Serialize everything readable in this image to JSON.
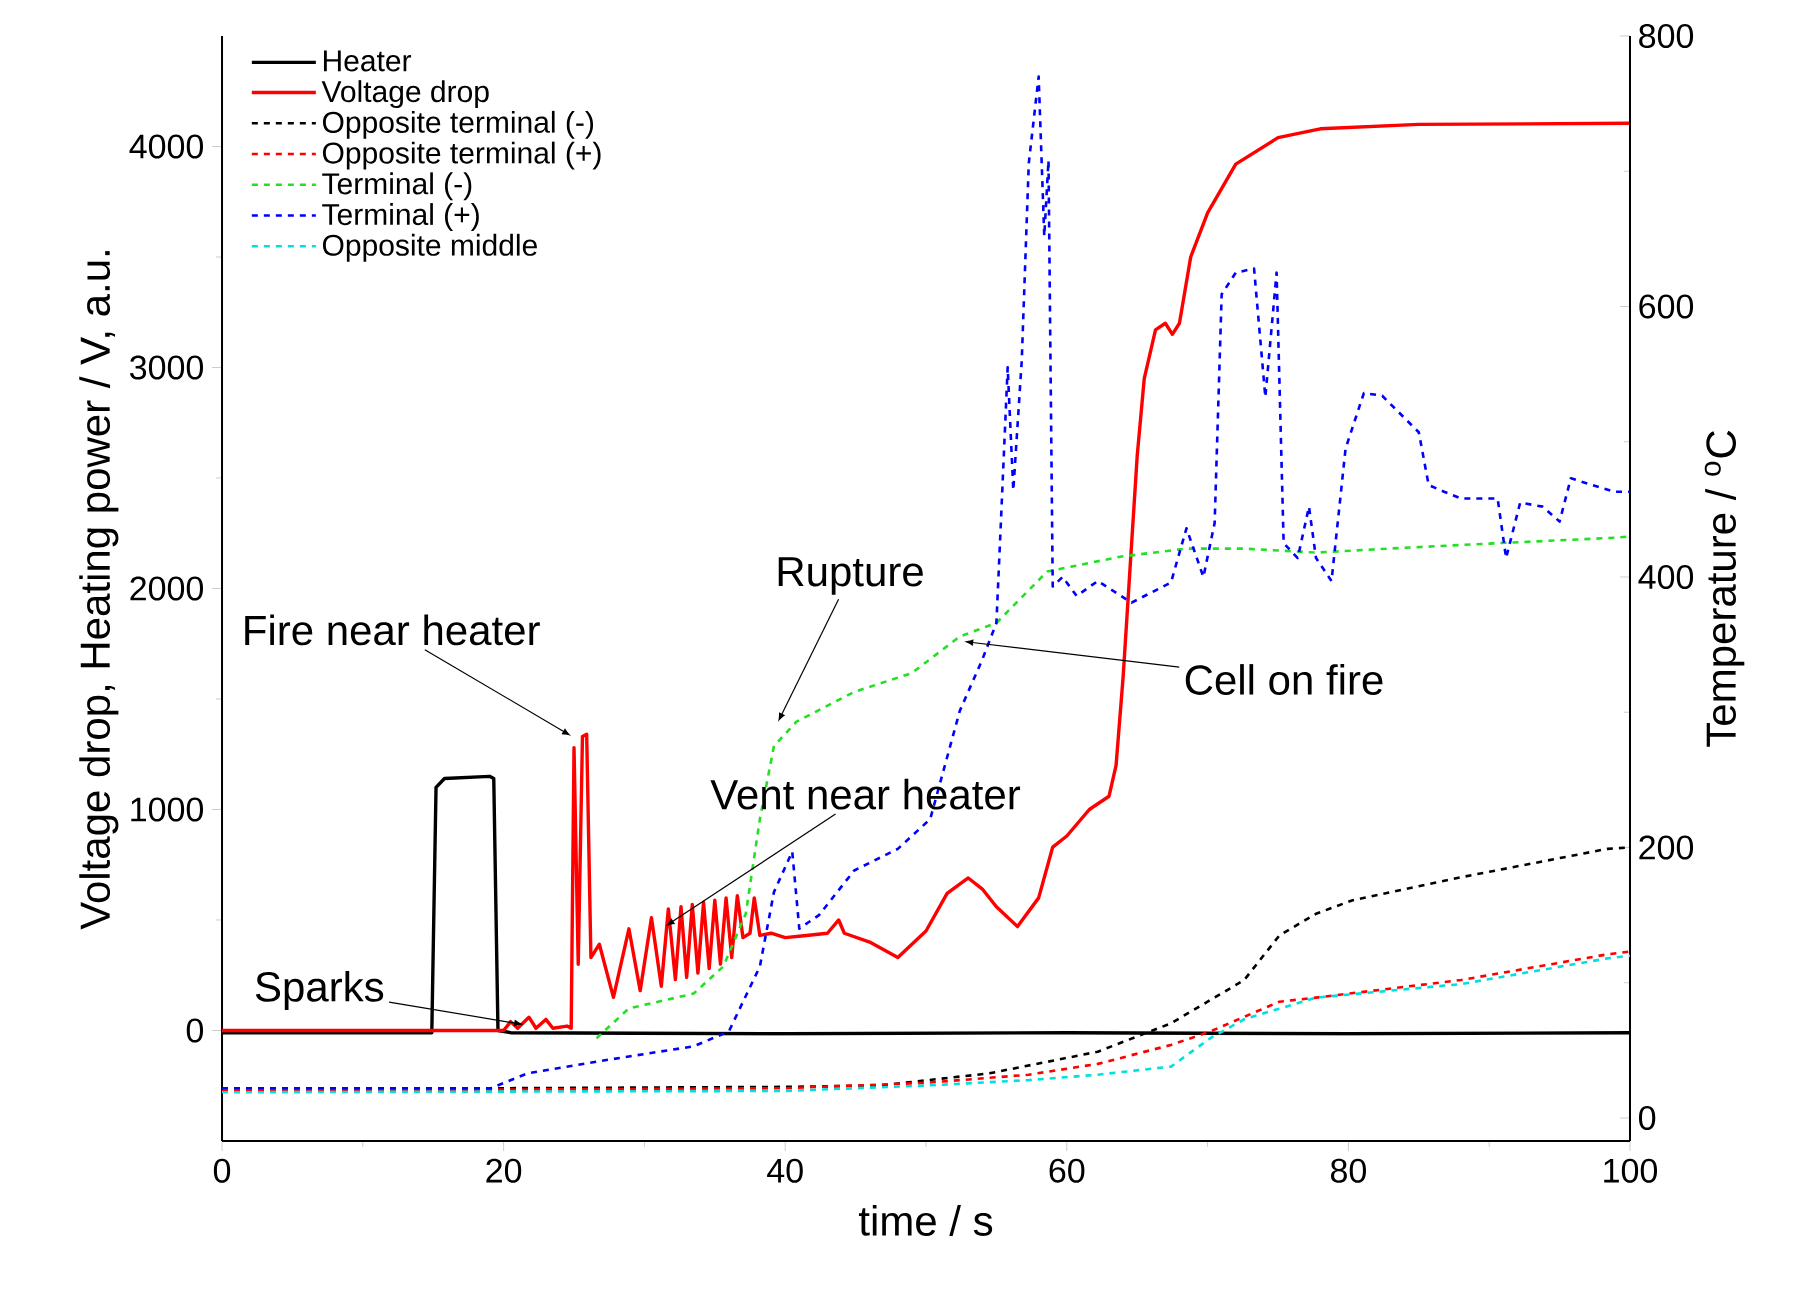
{
  "chart_data": {
    "type": "line",
    "xlabel": "time / s",
    "ylabel": "Voltage drop, Heating power / V, a.u.",
    "y2label": "Temperature / $^{o}$C",
    "xlim": [
      0,
      100
    ],
    "xticks": [
      0,
      20,
      40,
      60,
      80,
      100
    ],
    "ylim": [
      -500,
      4500
    ],
    "yticks": [
      0,
      1000,
      2000,
      3000,
      4000
    ],
    "y2lim": [
      -17,
      800
    ],
    "y2ticks": [
      0,
      200,
      400,
      600,
      800
    ],
    "legend": "top left",
    "series": [
      {
        "name": "Heater",
        "color": "#000000",
        "line_style": "solid",
        "x": [
          0,
          14.9,
          15.2,
          15.8,
          19.0,
          19.3,
          19.6,
          20.5,
          40,
          60,
          80,
          100
        ],
        "values": [
          -10,
          -10,
          1100,
          1140,
          1150,
          1140,
          0,
          -10,
          -15,
          -10,
          -15,
          -10
        ]
      },
      {
        "name": "Voltage drop",
        "color": "#ff0000",
        "line_style": "solid",
        "x": [
          0,
          20,
          20.5,
          21,
          21.8,
          22.3,
          23,
          23.5,
          24.5,
          24.8,
          25,
          25.3,
          25.6,
          25.9,
          26.2,
          26.8,
          27.8,
          28.9,
          29.7,
          30.5,
          31.2,
          31.7,
          32.2,
          32.6,
          33,
          33.4,
          33.8,
          34.2,
          34.6,
          35,
          35.4,
          35.8,
          36.2,
          36.6,
          37,
          37.5,
          37.8,
          38.2,
          39,
          40,
          41.5,
          43,
          43.8,
          44.2,
          46,
          48,
          50,
          51.5,
          53,
          54,
          55,
          56.5,
          58,
          59,
          60,
          61.6,
          63,
          63.5,
          64,
          64.5,
          65,
          65.5,
          66.3,
          67,
          67.5,
          68,
          68.8,
          70,
          72,
          75,
          78,
          85,
          100
        ],
        "values": [
          0,
          0,
          40,
          10,
          60,
          10,
          50,
          10,
          20,
          10,
          1280,
          300,
          1330,
          1340,
          330,
          390,
          150,
          460,
          180,
          510,
          200,
          550,
          230,
          560,
          240,
          570,
          260,
          580,
          280,
          590,
          300,
          600,
          330,
          610,
          420,
          440,
          600,
          430,
          440,
          420,
          430,
          440,
          500,
          440,
          400,
          330,
          450,
          620,
          690,
          640,
          560,
          470,
          600,
          830,
          880,
          1000,
          1060,
          1200,
          1600,
          2100,
          2600,
          2950,
          3170,
          3200,
          3150,
          3200,
          3500,
          3700,
          3920,
          4040,
          4080,
          4100,
          4105
        ]
      },
      {
        "name": "Opposite terminal (-)",
        "color": "#000000",
        "line_style": "dashed",
        "axis": "y2",
        "x": [
          0,
          20,
          40,
          46.7,
          54.5,
          62.2,
          67.4,
          72.6,
          75.1,
          77.7,
          80.3,
          88,
          98.4,
          100
        ],
        "values": [
          22,
          22,
          23,
          24,
          33,
          49,
          70,
          102,
          135,
          151,
          161,
          178,
          199,
          200
        ]
      },
      {
        "name": "Opposite terminal (+)",
        "color": "#ff0000",
        "line_style": "dashed",
        "axis": "y2",
        "x": [
          0,
          40,
          50,
          57.3,
          62.2,
          67.4,
          70.2,
          75.1,
          77.7,
          88,
          98.4,
          100
        ],
        "values": [
          20,
          22,
          26,
          32,
          40,
          54,
          64,
          86,
          89,
          102,
          121,
          123
        ]
      },
      {
        "name": "Terminal (-)",
        "color": "#22e022",
        "line_style": "dashed",
        "axis": "y2",
        "x": [
          26.6,
          28.9,
          33.5,
          35.6,
          37.2,
          38.2,
          39.2,
          40.8,
          44.9,
          49,
          52.4,
          55,
          58.6,
          63.8,
          68.5,
          72.6,
          77.7,
          82.9,
          90.6,
          98.9,
          100
        ],
        "values": [
          59,
          81,
          92,
          112,
          151,
          221,
          275,
          293,
          315,
          329,
          356,
          366,
          404,
          415,
          421,
          421,
          418,
          421,
          425,
          429,
          430
        ]
      },
      {
        "name": "Terminal (+)",
        "color": "#0000ff",
        "line_style": "dashed",
        "axis": "y2",
        "x": [
          0,
          19.1,
          21.7,
          27.4,
          33.5,
          36,
          38.2,
          39.2,
          40.5,
          41,
          42.4,
          44.9,
          48,
          50.3,
          52.4,
          54,
          55,
          55.3,
          55.8,
          56.2,
          56.8,
          57.3,
          58,
          58.4,
          58.7,
          59,
          59.7,
          60.7,
          62.2,
          64.6,
          67.4,
          68.5,
          69.7,
          70.5,
          71,
          72,
          73.3,
          74.1,
          74.9,
          75.4,
          76.4,
          77.2,
          77.7,
          78.8,
          79.8,
          81.1,
          82.4,
          85,
          85.7,
          86.8,
          88,
          90.6,
          91.2,
          92.2,
          93.8,
          95,
          95.8,
          97.3,
          98.9,
          100
        ],
        "values": [
          22,
          22,
          33,
          43,
          53,
          64,
          112,
          167,
          197,
          140,
          150,
          183,
          199,
          221,
          301,
          339,
          366,
          436,
          555,
          464,
          560,
          706,
          770,
          652,
          708,
          393,
          400,
          386,
          397,
          381,
          396,
          436,
          400,
          440,
          609,
          625,
          628,
          533,
          625,
          425,
          414,
          452,
          414,
          397,
          495,
          536,
          534,
          507,
          468,
          463,
          458,
          458,
          414,
          455,
          452,
          441,
          473,
          468,
          463,
          463
        ]
      },
      {
        "name": "Opposite middle",
        "color": "#00e0e0",
        "line_style": "dashed",
        "axis": "y2",
        "x": [
          0,
          40,
          50,
          57.3,
          62.2,
          67.4,
          70.2,
          72.6,
          77.7,
          88,
          98.4,
          100
        ],
        "values": [
          19,
          20,
          24,
          28,
          32,
          38,
          59,
          73,
          89,
          99,
          118,
          120
        ]
      }
    ],
    "annotations": [
      {
        "text": "Sparks",
        "x": 21.4,
        "y": 27
      },
      {
        "text": "Fire near heater",
        "x": 24.8,
        "y": 1333
      },
      {
        "text": "Vent near heater",
        "x": 31.5,
        "y": 472
      },
      "Rupture",
      {
        "text": "Cell on fire",
        "x": 52.7,
        "y": 1760
      }
    ]
  }
}
